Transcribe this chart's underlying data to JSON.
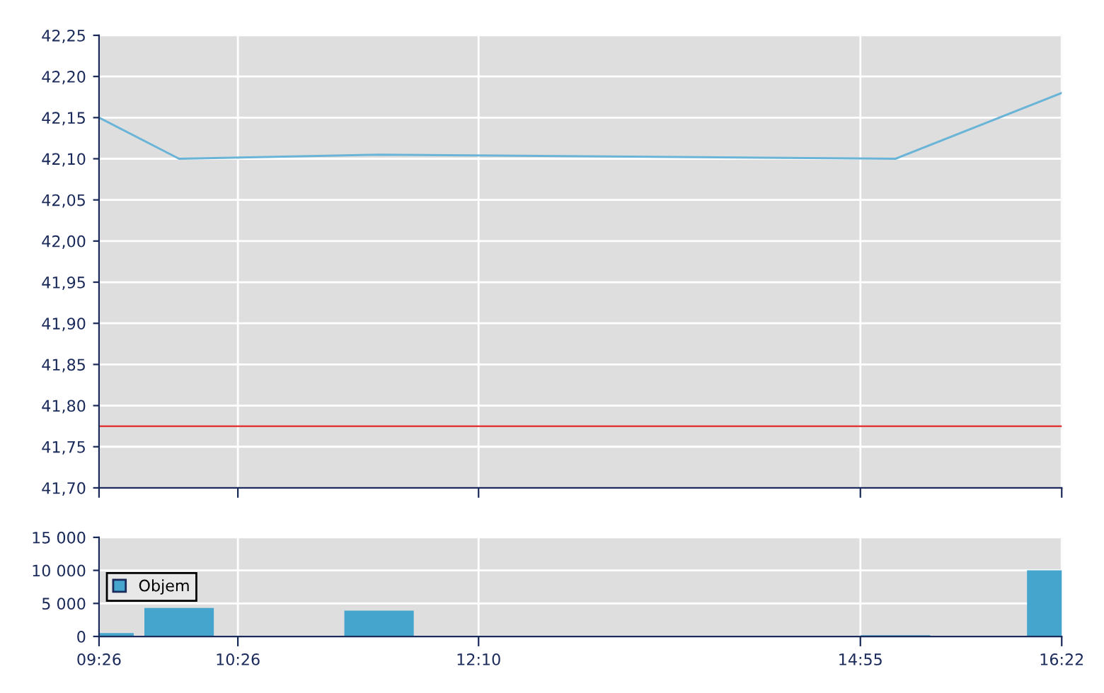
{
  "chart_data": [
    {
      "type": "line",
      "x": [
        9.4333,
        10.01,
        11.45,
        15.17,
        16.3667
      ],
      "series": [
        {
          "color": "#6ab4d8",
          "values": [
            42.15,
            42.1,
            42.105,
            42.1,
            42.18
          ]
        }
      ],
      "xlim": [
        9.4333,
        16.3667
      ],
      "xticks": [
        {
          "value": 9.4333,
          "label": null
        },
        {
          "value": 10.4333,
          "label": null
        },
        {
          "value": 12.1667,
          "label": null
        },
        {
          "value": 14.9167,
          "label": null
        },
        {
          "value": 16.3667,
          "label": null
        }
      ],
      "ylim": [
        41.7,
        42.25
      ],
      "yticks": [
        {
          "value": 41.7,
          "label": "41,70"
        },
        {
          "value": 41.75,
          "label": "41,75"
        },
        {
          "value": 41.8,
          "label": "41,80"
        },
        {
          "value": 41.85,
          "label": "41,85"
        },
        {
          "value": 41.9,
          "label": "41,90"
        },
        {
          "value": 41.95,
          "label": "41,95"
        },
        {
          "value": 42.0,
          "label": "42,00"
        },
        {
          "value": 42.05,
          "label": "42,05"
        },
        {
          "value": 42.1,
          "label": "42,10"
        },
        {
          "value": 42.15,
          "label": "42,15"
        },
        {
          "value": 42.2,
          "label": "42,20"
        },
        {
          "value": 42.25,
          "label": "42,25"
        }
      ],
      "ref_lines": [
        {
          "axis": "y",
          "value": 41.775,
          "color": "#e03c3c"
        }
      ],
      "grid": true,
      "tick_labels": "y",
      "marker": "none",
      "line_style": "solid"
    },
    {
      "type": "bar",
      "x": [
        9.4333,
        10.01,
        11.45,
        15.17,
        16.3667
      ],
      "series": [
        {
          "name": "Objem",
          "color": "#45a5cd",
          "values": [
            500,
            4300,
            3900,
            200,
            10000
          ]
        }
      ],
      "xlim": [
        9.4333,
        16.3667
      ],
      "xticks": [
        {
          "value": 9.4333,
          "label": "09:26"
        },
        {
          "value": 10.4333,
          "label": "10:26"
        },
        {
          "value": 12.1667,
          "label": "12:10"
        },
        {
          "value": 14.9167,
          "label": "14:55"
        },
        {
          "value": 16.3667,
          "label": "16:22"
        }
      ],
      "ylim": [
        0,
        15000
      ],
      "yticks": [
        0,
        {
          "value": 5000,
          "label": "5 000"
        },
        {
          "value": 10000,
          "label": "10 000"
        },
        {
          "value": 15000,
          "label": "15 000"
        }
      ],
      "grid": true,
      "legend": "left"
    }
  ]
}
